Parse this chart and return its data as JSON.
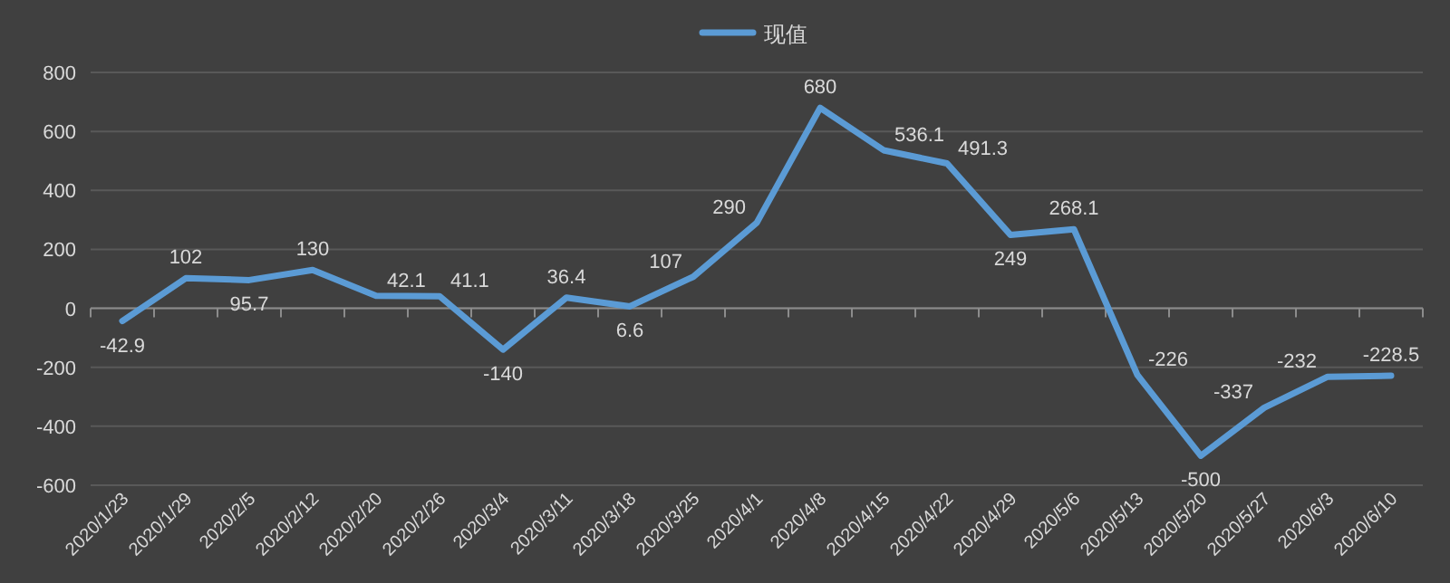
{
  "chart_data": {
    "type": "line",
    "categories": [
      "2020/1/23",
      "2020/1/29",
      "2020/2/5",
      "2020/2/12",
      "2020/2/20",
      "2020/2/26",
      "2020/3/4",
      "2020/3/11",
      "2020/3/18",
      "2020/3/25",
      "2020/4/1",
      "2020/4/8",
      "2020/4/15",
      "2020/4/22",
      "2020/4/29",
      "2020/5/6",
      "2020/5/13",
      "2020/5/20",
      "2020/5/27",
      "2020/6/3",
      "2020/6/10"
    ],
    "series": [
      {
        "name": "现值",
        "color": "#5b9bd5",
        "values": [
          -42.9,
          102,
          95.7,
          130,
          42.1,
          41.1,
          -140,
          36.4,
          6.6,
          107,
          290,
          680,
          536.1,
          491.3,
          249,
          268.1,
          -226,
          -500,
          -337,
          -232,
          -228.5
        ]
      }
    ],
    "ylim": [
      -600,
      800
    ],
    "yticks": [
      -600,
      -400,
      -200,
      0,
      200,
      400,
      600,
      800
    ],
    "grid": "y",
    "legend": "top",
    "data_labels": true,
    "marker": "none",
    "line_style": "solid"
  }
}
